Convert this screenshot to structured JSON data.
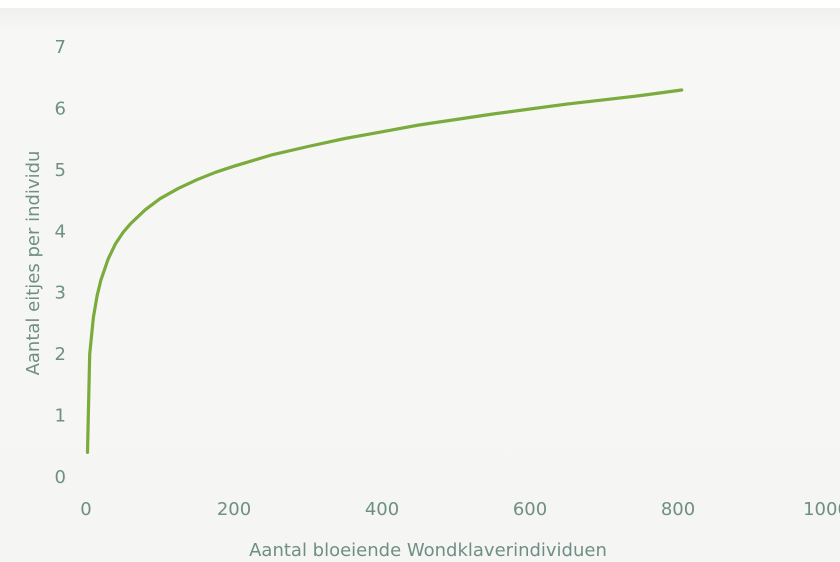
{
  "chart_data": {
    "type": "line",
    "title": "",
    "xlabel": "Aantal bloeiende Wondklaverindividuen",
    "ylabel": "Aantal eitjes per individu",
    "xlim": [
      0,
      1000
    ],
    "ylim": [
      0,
      7
    ],
    "x_ticks": [
      0,
      200,
      400,
      600,
      800,
      1000
    ],
    "y_ticks": [
      0,
      1,
      2,
      3,
      4,
      5,
      6,
      7
    ],
    "x_tick_labels": [
      "0",
      "200",
      "400",
      "600",
      "800",
      "1000"
    ],
    "y_tick_labels": [
      "0",
      "1",
      "2",
      "3",
      "4",
      "5",
      "6",
      "7"
    ],
    "grid": false,
    "line_color": "#7aab3c",
    "text_color": "#6f8f86",
    "series": [
      {
        "x": [
          2,
          5,
          10,
          15,
          20,
          30,
          40,
          50,
          60,
          80,
          100,
          125,
          150,
          175,
          200,
          250,
          300,
          350,
          400,
          450,
          500,
          550,
          600,
          650,
          700,
          750,
          805
        ],
        "values": [
          0.4,
          2.0,
          2.6,
          2.95,
          3.2,
          3.55,
          3.8,
          3.98,
          4.12,
          4.35,
          4.53,
          4.7,
          4.84,
          4.96,
          5.06,
          5.24,
          5.38,
          5.51,
          5.62,
          5.73,
          5.82,
          5.91,
          5.99,
          6.07,
          6.14,
          6.21,
          6.3
        ]
      }
    ]
  }
}
